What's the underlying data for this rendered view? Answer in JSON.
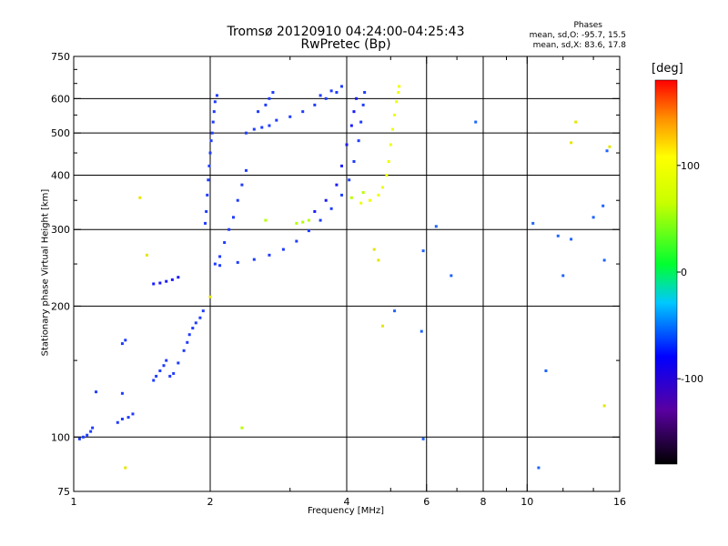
{
  "chart_data": {
    "type": "scatter",
    "title": "Tromsø 20120910 04:24:00-04:25:43",
    "subtitle": "RwPretec (Bp)",
    "xlabel": "Frequency [MHz]",
    "ylabel": "Stationary phase Virtual Height [km]",
    "x_scale": "log",
    "y_scale": "log",
    "xlim": [
      1,
      16
    ],
    "ylim": [
      75,
      750
    ],
    "x_ticks": [
      1,
      2,
      4,
      6,
      8,
      10,
      16
    ],
    "y_ticks": [
      75,
      100,
      200,
      300,
      400,
      500,
      600,
      750
    ],
    "x_minor_ticks": [
      3,
      5,
      7,
      9,
      12,
      14
    ],
    "y_minor_ticks": [
      150,
      250,
      350,
      450,
      550,
      650,
      700
    ],
    "grid": true,
    "grid_x": [
      2,
      4,
      6,
      8,
      10
    ],
    "grid_y": [
      100,
      200,
      300,
      400,
      500,
      600
    ],
    "legend": {
      "heading": "Phases",
      "line_o": "mean, sd,O: -95.7, 15.5",
      "line_x": "mean, sd,X:  83.6, 17.8"
    },
    "colorbar": {
      "label": "[deg]",
      "range": [
        -180,
        180
      ],
      "ticks": [
        100,
        0,
        -100
      ],
      "tick_labels": [
        "100",
        "0",
        "-100"
      ]
    },
    "series": [
      {
        "values": [
          [
            1.03,
            99
          ],
          [
            1.05,
            100
          ],
          [
            1.07,
            101
          ],
          [
            1.09,
            103
          ],
          [
            1.1,
            105
          ],
          [
            1.12,
            127
          ],
          [
            1.25,
            108
          ],
          [
            1.28,
            110
          ],
          [
            1.32,
            111
          ],
          [
            1.35,
            113
          ],
          [
            1.28,
            164
          ],
          [
            1.3,
            167
          ],
          [
            1.28,
            126
          ]
        ],
        "phase": -110
      },
      {
        "values": [
          [
            1.5,
            135
          ],
          [
            1.52,
            138
          ],
          [
            1.55,
            142
          ],
          [
            1.58,
            146
          ],
          [
            1.6,
            150
          ],
          [
            1.63,
            138
          ],
          [
            1.66,
            140
          ],
          [
            1.7,
            148
          ],
          [
            1.75,
            158
          ],
          [
            1.78,
            165
          ],
          [
            1.8,
            172
          ],
          [
            1.83,
            178
          ],
          [
            1.86,
            183
          ],
          [
            1.9,
            188
          ],
          [
            1.93,
            195
          ]
        ],
        "phase": -105
      },
      {
        "values": [
          [
            1.5,
            225
          ],
          [
            1.55,
            226
          ],
          [
            1.6,
            228
          ],
          [
            1.65,
            230
          ],
          [
            1.7,
            233
          ]
        ],
        "phase": -115
      },
      {
        "values": [
          [
            1.95,
            310
          ],
          [
            1.96,
            330
          ],
          [
            1.97,
            360
          ],
          [
            1.98,
            390
          ],
          [
            1.99,
            420
          ],
          [
            2.0,
            450
          ],
          [
            2.01,
            480
          ],
          [
            2.02,
            500
          ],
          [
            2.03,
            530
          ],
          [
            2.04,
            560
          ],
          [
            2.05,
            590
          ],
          [
            2.07,
            610
          ],
          [
            2.05,
            250
          ],
          [
            2.1,
            260
          ],
          [
            2.15,
            280
          ],
          [
            2.2,
            300
          ],
          [
            2.25,
            320
          ],
          [
            2.3,
            350
          ],
          [
            2.35,
            380
          ],
          [
            2.4,
            410
          ]
        ],
        "phase": -100
      },
      {
        "values": [
          [
            2.1,
            248
          ],
          [
            2.3,
            252
          ],
          [
            2.5,
            256
          ],
          [
            2.7,
            262
          ],
          [
            2.9,
            270
          ],
          [
            3.1,
            282
          ],
          [
            3.3,
            298
          ],
          [
            3.5,
            315
          ],
          [
            3.7,
            335
          ],
          [
            3.9,
            360
          ],
          [
            4.05,
            390
          ],
          [
            4.15,
            430
          ],
          [
            4.25,
            480
          ],
          [
            4.3,
            530
          ],
          [
            4.35,
            580
          ],
          [
            4.38,
            620
          ]
        ],
        "phase": -110
      },
      {
        "values": [
          [
            2.4,
            500
          ],
          [
            2.5,
            510
          ],
          [
            2.6,
            515
          ],
          [
            2.7,
            520
          ],
          [
            2.8,
            535
          ],
          [
            3.0,
            545
          ],
          [
            3.2,
            560
          ],
          [
            3.4,
            580
          ],
          [
            3.6,
            600
          ],
          [
            3.8,
            620
          ],
          [
            3.5,
            610
          ],
          [
            3.7,
            625
          ],
          [
            3.9,
            640
          ],
          [
            2.55,
            560
          ],
          [
            2.65,
            580
          ],
          [
            2.7,
            600
          ],
          [
            2.75,
            620
          ]
        ],
        "phase": -105
      },
      {
        "values": [
          [
            3.4,
            330
          ],
          [
            3.6,
            350
          ],
          [
            3.8,
            380
          ],
          [
            3.9,
            420
          ],
          [
            4.0,
            470
          ],
          [
            4.1,
            520
          ],
          [
            4.15,
            560
          ],
          [
            4.2,
            600
          ]
        ],
        "phase": -125
      },
      {
        "values": [
          [
            4.3,
            345
          ],
          [
            4.5,
            350
          ],
          [
            4.7,
            360
          ],
          [
            4.8,
            375
          ],
          [
            4.9,
            400
          ],
          [
            4.95,
            430
          ],
          [
            5.0,
            470
          ],
          [
            5.05,
            510
          ],
          [
            5.1,
            550
          ],
          [
            5.15,
            590
          ],
          [
            5.2,
            620
          ],
          [
            5.22,
            640
          ]
        ],
        "phase": 105
      },
      {
        "values": [
          [
            3.1,
            310
          ],
          [
            3.2,
            312
          ],
          [
            3.3,
            315
          ],
          [
            4.1,
            355
          ],
          [
            4.35,
            365
          ],
          [
            2.35,
            105
          ],
          [
            2.65,
            315
          ]
        ],
        "phase": 75
      },
      {
        "values": [
          [
            5.9,
            99
          ],
          [
            5.85,
            175
          ],
          [
            5.1,
            195
          ],
          [
            6.8,
            235
          ],
          [
            5.9,
            268
          ],
          [
            6.3,
            305
          ],
          [
            7.7,
            530
          ],
          [
            10.3,
            310
          ],
          [
            10.6,
            85
          ],
          [
            11.7,
            290
          ],
          [
            12.0,
            235
          ],
          [
            12.5,
            285
          ],
          [
            14.0,
            320
          ],
          [
            14.8,
            255
          ],
          [
            15.0,
            455
          ],
          [
            14.7,
            340
          ],
          [
            11.0,
            142
          ]
        ],
        "phase": -95
      },
      {
        "values": [
          [
            1.4,
            355
          ],
          [
            1.45,
            262
          ],
          [
            1.3,
            85
          ],
          [
            2.0,
            210
          ],
          [
            4.8,
            180
          ],
          [
            4.6,
            270
          ],
          [
            4.7,
            255
          ],
          [
            12.5,
            475
          ],
          [
            12.8,
            530
          ],
          [
            14.8,
            118
          ],
          [
            15.2,
            465
          ]
        ],
        "phase": 90
      }
    ]
  }
}
